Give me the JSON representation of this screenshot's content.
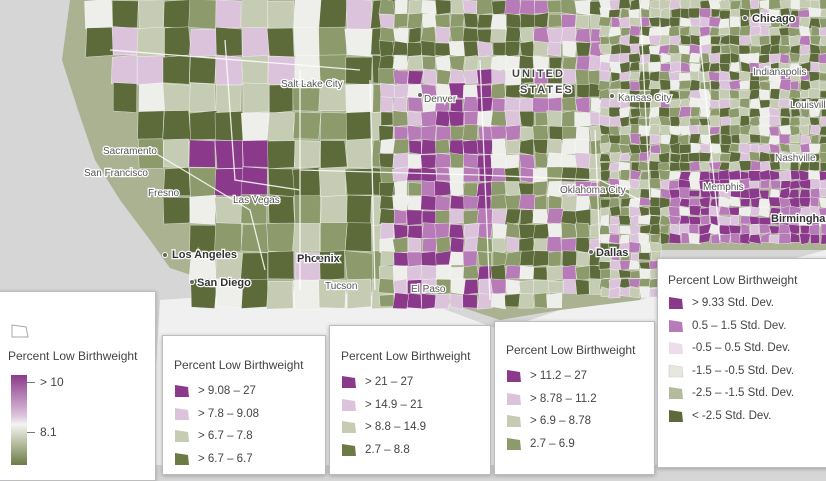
{
  "map": {
    "country_label_line1": "UNITED",
    "country_label_line2": "STATES",
    "cities": {
      "chicago": "Chicago",
      "salt_lake_city": "Salt Lake City",
      "denver": "Denver",
      "kansas_city": "Kansas City",
      "indianapolis": "Indianapolis",
      "louisville": "Louisville",
      "sacramento": "Sacramento",
      "san_francisco": "San Francisco",
      "fresno": "Fresno",
      "las_vegas": "Las Vegas",
      "nashville": "Nashville",
      "oklahoma_city": "Oklahoma City",
      "memphis": "Memphis",
      "birmingham": "Birmingham",
      "los_angeles": "Los Angeles",
      "phoenix": "Phoenix",
      "dallas": "Dallas",
      "san_diego": "San Diego",
      "tucson": "Tucson",
      "el_paso": "El Paso"
    },
    "colors": {
      "water": "#d6d6d6",
      "land_outside": "#f2f2f2",
      "dark_purple": "#8b3a8b",
      "purple": "#b77bb7",
      "light_purple": "#dcc3dc",
      "neutral": "#eeeeea",
      "light_green": "#c5ccb3",
      "green": "#8c9a6c",
      "dark_green": "#5d6b3b"
    }
  },
  "legend_continuous": {
    "title": "Percent Low Birthweight",
    "max_label": "> 10",
    "mid_label": "8.1"
  },
  "legend_a": {
    "title": "Percent Low Birthweight",
    "items": [
      "> 9.08 – 27",
      "> 7.8 – 9.08",
      "> 6.7 – 7.8",
      "> 6.7 – 6.7"
    ]
  },
  "legend_b": {
    "title": "Percent Low Birthweight",
    "items": [
      "> 21 – 27",
      "> 14.9 – 21",
      "> 8.8 – 14.9",
      "2.7 – 8.8"
    ]
  },
  "legend_c": {
    "title": "Percent Low Birthweight",
    "items": [
      "> 11.2 – 27",
      "> 8.78 – 11.2",
      "> 6.9 – 8.78",
      "2.7 – 6.9"
    ]
  },
  "legend_d": {
    "title": "Percent Low Birthweight",
    "items": [
      "> 9.33 Std. Dev.",
      "0.5 – 1.5 Std. Dev.",
      "-0.5 – 0.5 Std. Dev.",
      "-1.5 – -0.5 Std. Dev.",
      "-2.5 – -1.5 Std. Dev.",
      "< -2.5 Std. Dev."
    ]
  }
}
